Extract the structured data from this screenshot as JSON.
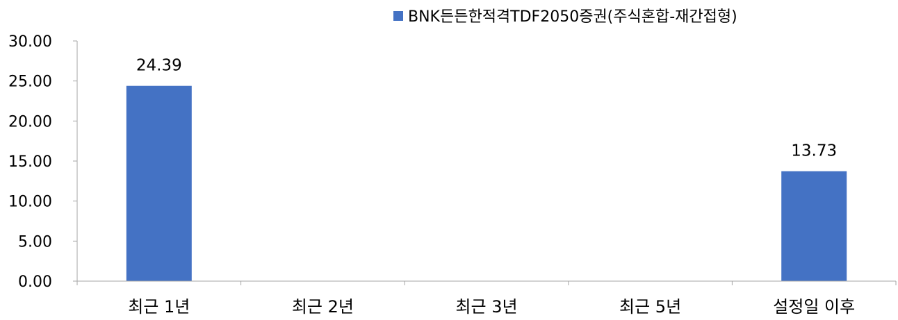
{
  "chart_data": {
    "type": "bar",
    "categories": [
      "최근 1년",
      "최근 2년",
      "최근 3년",
      "최근 5년",
      "설정일 이후"
    ],
    "series": [
      {
        "name": "BNK든든한적격TDF2050증권(주식혼합-재간접형)",
        "values": [
          24.39,
          null,
          null,
          null,
          13.73
        ],
        "data_labels": [
          "24.39",
          "",
          "",
          "",
          "13.73"
        ],
        "color": "#4472c4"
      }
    ],
    "yticks": [
      "0.00",
      "5.00",
      "10.00",
      "15.00",
      "20.00",
      "25.00",
      "30.00"
    ],
    "ylim": [
      0,
      30
    ],
    "grid": false,
    "legend_position": "top-right"
  }
}
